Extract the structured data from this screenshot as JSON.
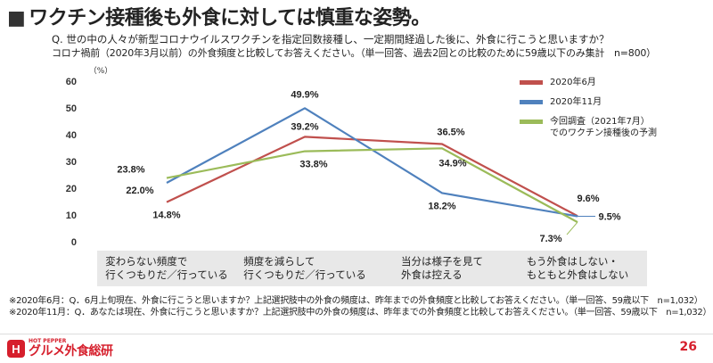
{
  "header": {
    "title_marker": "■",
    "title": "ワクチン接種後も外食に対しては慎重な姿勢。",
    "question_line1": "Q. 世の中の人々が新型コロナウイルスワクチンを指定回数接種し、一定期間経過した後に、外食に行こうと思いますか？",
    "question_line2": "コロナ禍前（2020年3月以前）の外食頻度と比較してお答えください。（単一回答、過去2回との比較のために59歳以下のみ集計　n=800）"
  },
  "chart_data": {
    "type": "line",
    "categories": [
      "変わらない頻度で\n行くつもりだ／行っている",
      "頻度を減らして\n行くつもりだ／行っている",
      "当分は様子を見て\n外食は控える",
      "もう外食はしない・\nもともと外食はしない"
    ],
    "series": [
      {
        "name": "2020年6月",
        "color": "#c0504d",
        "values": [
          14.8,
          39.2,
          36.5,
          9.6
        ],
        "labels": [
          "14.8%",
          "39.2%",
          "36.5%",
          "9.6%"
        ]
      },
      {
        "name": "2020年11月",
        "color": "#4f81bd",
        "values": [
          22.0,
          49.9,
          18.2,
          9.5
        ],
        "labels": [
          "22.0%",
          "49.9%",
          "18.2%",
          "9.5%"
        ]
      },
      {
        "name": "今回調査（2021年7月）\nでのワクチン接種後の予測",
        "color": "#9bbb59",
        "values": [
          23.8,
          33.8,
          34.9,
          7.3
        ],
        "labels": [
          "23.8%",
          "33.8%",
          "34.9%",
          "7.3%"
        ]
      }
    ],
    "ylim": [
      0,
      60
    ],
    "yticks": [
      0,
      10,
      20,
      30,
      40,
      50,
      60
    ],
    "ylabel": "（%）",
    "xlabel": "",
    "grid": false,
    "legend": "top-right"
  },
  "notes": {
    "note1": "※2020年6月：Q．6月上旬現在、外食に行こうと思いますか？上記選択肢中の外食の頻度は、昨年までの外食頻度と比較してお答えください。（単一回答、59歳以下　n=1,032）",
    "note2": "※2020年11月：Q．あなたは現在、外食に行こうと思いますか？上記選択肢中の外食の頻度は、昨年までの外食頻度と比較してお答えください。（単一回答、59歳以下　n=1,032）"
  },
  "footer": {
    "logo_badge": "H",
    "logo_small": "HOT PEPPER",
    "logo_main": "グルメ外食総研",
    "page_number": "26"
  }
}
